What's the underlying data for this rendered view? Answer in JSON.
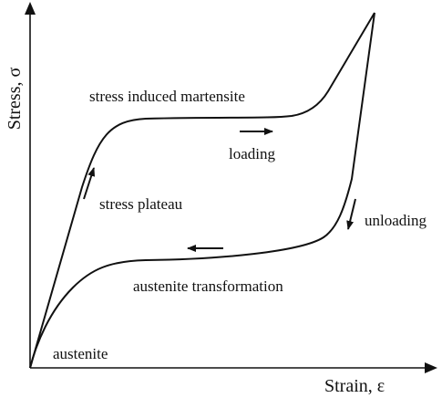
{
  "diagram": {
    "labels": {
      "y_axis": "Stress, σ",
      "x_axis": "Strain, ε",
      "stress_induced_martensite": "stress induced martensite",
      "loading": "loading",
      "stress_plateau": "stress plateau",
      "unloading": "unloading",
      "austenite_transformation": "austenite transformation",
      "austenite": "austenite"
    },
    "colors": {
      "line": "#111111",
      "background": "#ffffff"
    }
  }
}
